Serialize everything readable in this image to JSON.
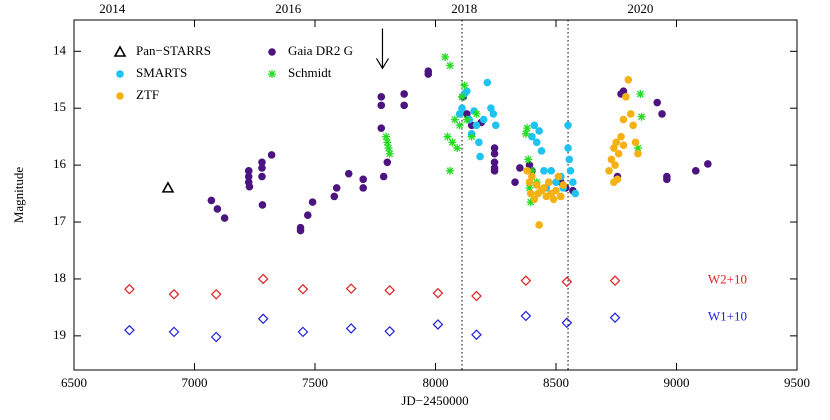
{
  "chart_data": {
    "type": "scatter",
    "x_label": "JD−2450000",
    "y_label": "Magnitude",
    "xlim": [
      6500,
      9500
    ],
    "xticks": [
      6500,
      7000,
      7500,
      8000,
      8500,
      9000,
      9500
    ],
    "ylim": [
      19.6,
      13.45
    ],
    "yticks": [
      14,
      15,
      16,
      17,
      18,
      19
    ],
    "x2lim": [
      2013.566,
      2021.78
    ],
    "x2ticks": [
      2014,
      2016,
      2018,
      2020
    ],
    "grid": false,
    "legend": "upper left",
    "vlines": [
      8110,
      8550
    ],
    "arrow": {
      "x": 7780,
      "from": 13.6,
      "to": 14.3
    },
    "series": [
      {
        "name": "Pan−STARRS",
        "color": "#000000",
        "marker": "triangle",
        "x": [
          6890
        ],
        "values": [
          16.4
        ]
      },
      {
        "name": "Gaia DR2 G",
        "color": "#4b1480",
        "marker": "circle",
        "x": [
          7070,
          7095,
          7125,
          7225,
          7225,
          7225,
          7228,
          7280,
          7280,
          7280,
          7282,
          7320,
          7440,
          7440,
          7470,
          7490,
          7580,
          7590,
          7640,
          7700,
          7700,
          7775,
          7775,
          7775,
          7785,
          7800,
          7870,
          7870,
          7970,
          7970,
          8115,
          8130,
          8150,
          8190,
          8245,
          8245,
          8245,
          8245,
          8245,
          8330,
          8350,
          8390,
          8400,
          8520,
          8540,
          8570,
          8770,
          8780,
          8920,
          8940,
          8960,
          8960,
          9080,
          9130,
          8755
        ],
        "values": [
          16.62,
          16.77,
          16.93,
          16.1,
          16.2,
          16.3,
          16.38,
          15.95,
          16.05,
          16.2,
          16.7,
          15.82,
          17.1,
          17.15,
          16.88,
          16.65,
          16.55,
          16.4,
          16.15,
          16.4,
          16.25,
          14.8,
          14.95,
          15.35,
          16.2,
          15.95,
          14.75,
          14.95,
          14.4,
          14.35,
          14.8,
          15.1,
          15.3,
          15.25,
          15.7,
          15.8,
          15.95,
          16.05,
          16.1,
          16.3,
          16.05,
          16.0,
          16.1,
          16.3,
          16.4,
          16.45,
          14.75,
          14.7,
          14.9,
          15.1,
          16.2,
          16.25,
          16.1,
          15.98,
          16.2
        ]
      },
      {
        "name": "SMARTS",
        "color": "#1ec3f0",
        "marker": "circle",
        "x": [
          8100,
          8110,
          8120,
          8130,
          8140,
          8150,
          8160,
          8170,
          8180,
          8185,
          8200,
          8215,
          8230,
          8240,
          8250,
          8400,
          8410,
          8420,
          8430,
          8440,
          8450,
          8460,
          8470,
          8480,
          8500,
          8520,
          8530,
          8550,
          8550,
          8555,
          8560,
          8570,
          8580
        ],
        "values": [
          15.1,
          15.0,
          14.75,
          14.7,
          15.2,
          15.45,
          15.05,
          15.3,
          15.6,
          15.85,
          15.2,
          14.55,
          15.0,
          15.1,
          15.3,
          15.5,
          15.3,
          15.6,
          15.4,
          15.75,
          16.1,
          16.4,
          16.3,
          16.1,
          16.3,
          16.2,
          16.4,
          15.3,
          15.7,
          15.9,
          16.1,
          16.3,
          16.5
        ]
      },
      {
        "name": "Schmidt",
        "color": "#22dd22",
        "marker": "asterisk",
        "x": [
          7795,
          7800,
          7805,
          7810,
          8040,
          8060,
          8050,
          8060,
          8070,
          8080,
          8090,
          8100,
          8110,
          8120,
          8130,
          8150,
          8170,
          8375,
          8380,
          8385,
          8390,
          8395,
          8400,
          8420,
          8840,
          8850,
          8855
        ],
        "values": [
          15.5,
          15.6,
          15.7,
          15.8,
          14.1,
          14.25,
          15.5,
          16.1,
          15.6,
          15.2,
          15.7,
          15.3,
          14.8,
          14.6,
          15.2,
          15.5,
          15.1,
          15.45,
          15.35,
          15.9,
          16.4,
          16.65,
          16.1,
          16.3,
          15.7,
          14.75,
          15.15
        ]
      },
      {
        "name": "ZTF",
        "color": "#f5b014",
        "marker": "circle",
        "x": [
          8380,
          8390,
          8395,
          8400,
          8410,
          8420,
          8425,
          8430,
          8440,
          8450,
          8460,
          8470,
          8480,
          8490,
          8500,
          8510,
          8520,
          8530,
          8720,
          8730,
          8740,
          8745,
          8750,
          8755,
          8760,
          8770,
          8780,
          8790,
          8800,
          8810,
          8820,
          8830,
          8840,
          8740,
          8780
        ],
        "values": [
          16.1,
          16.3,
          16.5,
          16.2,
          16.6,
          16.35,
          16.5,
          17.05,
          16.45,
          16.4,
          16.55,
          16.3,
          16.5,
          16.6,
          16.45,
          16.2,
          16.55,
          16.35,
          16.1,
          15.9,
          15.7,
          16.0,
          15.6,
          16.25,
          15.8,
          15.5,
          15.2,
          14.8,
          14.5,
          15.1,
          15.3,
          15.6,
          15.8,
          16.3,
          15.65
        ]
      },
      {
        "name": "W2+10",
        "color": "#e02020",
        "marker": "diamond",
        "legend": false,
        "x": [
          6730,
          6915,
          7090,
          7285,
          7450,
          7650,
          7810,
          8010,
          8170,
          8375,
          8545,
          8745
        ],
        "values": [
          18.18,
          18.27,
          18.27,
          18.0,
          18.18,
          18.17,
          18.2,
          18.25,
          18.3,
          18.03,
          18.05,
          18.03
        ]
      },
      {
        "name": "W1+10",
        "color": "#2020e0",
        "marker": "diamond",
        "legend": false,
        "x": [
          6730,
          6915,
          7090,
          7285,
          7450,
          7650,
          7810,
          8010,
          8170,
          8375,
          8545,
          8745
        ],
        "values": [
          18.9,
          18.93,
          19.02,
          18.7,
          18.93,
          18.87,
          18.92,
          18.8,
          18.98,
          18.65,
          18.77,
          18.68
        ]
      }
    ]
  }
}
